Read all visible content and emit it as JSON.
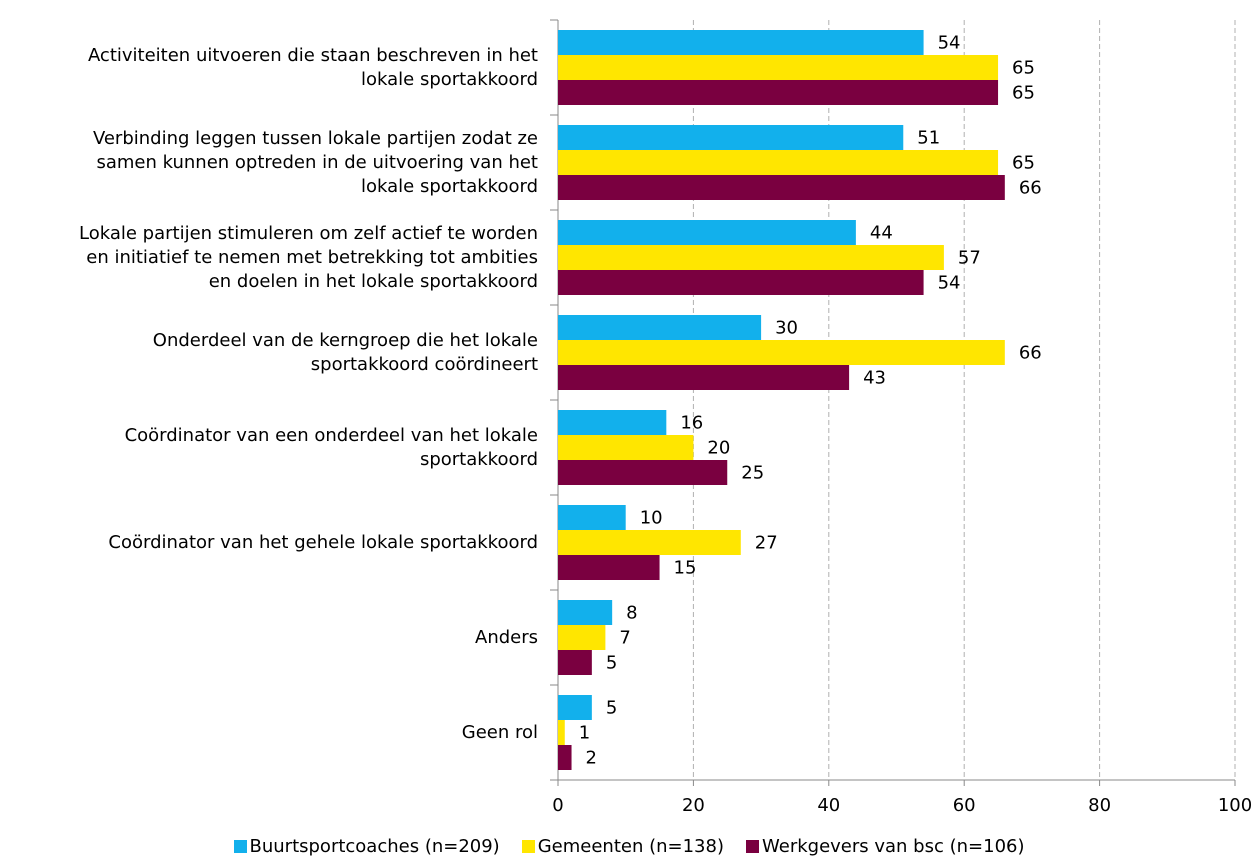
{
  "chart_data": {
    "type": "bar",
    "orientation": "horizontal",
    "categories": [
      "Activiteiten uitvoeren die staan beschreven in het\nlokale sportakkoord",
      "Verbinding leggen tussen lokale partijen zodat ze\nsamen kunnen optreden in de uitvoering van het\nlokale sportakkoord",
      "Lokale partijen stimuleren om zelf actief te worden\nen initiatief te nemen met betrekking tot ambities\nen doelen in het lokale sportakkoord",
      "Onderdeel van de kerngroep die het lokale\nsportakkoord coördineert",
      "Coördinator van een onderdeel van het lokale\nsportakkoord",
      "Coördinator van het gehele lokale sportakkoord",
      "Anders",
      "Geen rol"
    ],
    "series": [
      {
        "name": "Buurtsportcoaches (n=209)",
        "color": "#12b0ec",
        "values": [
          54,
          51,
          44,
          30,
          16,
          10,
          8,
          5
        ]
      },
      {
        "name": "Gemeenten (n=138)",
        "color": "#ffe600",
        "values": [
          65,
          65,
          57,
          66,
          20,
          27,
          7,
          1
        ]
      },
      {
        "name": "Werkgevers van bsc (n=106)",
        "color": "#7a0040",
        "values": [
          65,
          66,
          54,
          43,
          25,
          15,
          5,
          2
        ]
      }
    ],
    "xlim": [
      0,
      100
    ],
    "xticks": [
      0,
      20,
      40,
      60,
      80,
      100
    ],
    "grid": true,
    "legend": "bottom"
  }
}
